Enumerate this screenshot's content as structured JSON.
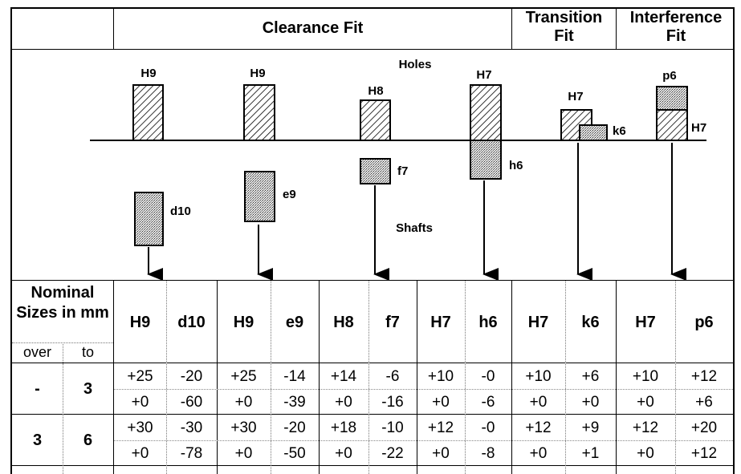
{
  "header": {
    "clearance": "Clearance Fit",
    "transition": "Transition Fit",
    "interference": "Interference Fit"
  },
  "diagram": {
    "holes_label": "Holes",
    "shafts_label": "Shafts",
    "labels": [
      "H9",
      "d10",
      "H9",
      "e9",
      "H8",
      "f7",
      "H7",
      "h6",
      "H7",
      "k6",
      "p6",
      "H7"
    ]
  },
  "table": {
    "nominal_label": "Nominal Sizes in mm",
    "over": "over",
    "to": "to",
    "columns": [
      "H9",
      "d10",
      "H9",
      "e9",
      "H8",
      "f7",
      "H7",
      "h6",
      "H7",
      "k6",
      "H7",
      "p6"
    ],
    "rows": [
      {
        "over": "-",
        "to": "3",
        "upper": [
          "+25",
          "-20",
          "+25",
          "-14",
          "+14",
          "-6",
          "+10",
          "-0",
          "+10",
          "+6",
          "+10",
          "+12"
        ],
        "lower": [
          "+0",
          "-60",
          "+0",
          "-39",
          "+0",
          "-16",
          "+0",
          "-6",
          "+0",
          "+0",
          "+0",
          "+6"
        ]
      },
      {
        "over": "3",
        "to": "6",
        "upper": [
          "+30",
          "-30",
          "+30",
          "-20",
          "+18",
          "-10",
          "+12",
          "-0",
          "+12",
          "+9",
          "+12",
          "+20"
        ],
        "lower": [
          "+0",
          "-78",
          "+0",
          "-50",
          "+0",
          "-22",
          "+0",
          "-8",
          "+0",
          "+1",
          "+0",
          "+12"
        ]
      }
    ]
  }
}
